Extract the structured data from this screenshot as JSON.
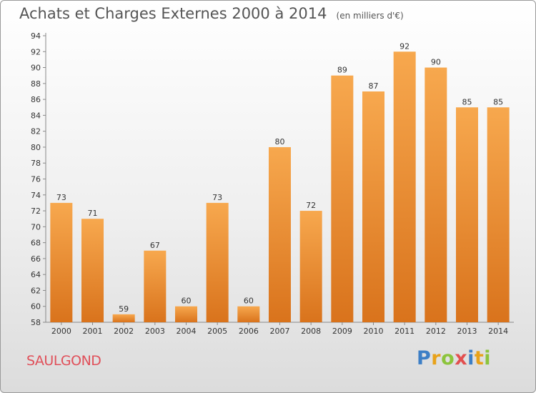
{
  "header": {
    "title": "Achats et Charges Externes 2000 à 2014",
    "unit": "(en milliers d'€)"
  },
  "footer": {
    "commune": "SAULGOND",
    "logo_letters": [
      "P",
      "r",
      "o",
      "x",
      "i",
      "t",
      "i"
    ]
  },
  "colors": {
    "bar_top": "#f7a84e",
    "bar_bottom": "#d9731c",
    "commune": "#e0505a",
    "logo": [
      "#3d7fc6",
      "#e8a21a",
      "#8cc43c",
      "#e24f4f",
      "#3d7fc6",
      "#e8a21a",
      "#8cc43c"
    ]
  },
  "chart_data": {
    "type": "bar",
    "title": "Achats et Charges Externes 2000 à 2014",
    "subtitle": "(en milliers d'€)",
    "categories": [
      "2000",
      "2001",
      "2002",
      "2003",
      "2004",
      "2005",
      "2006",
      "2007",
      "2008",
      "2009",
      "2010",
      "2011",
      "2012",
      "2013",
      "2014"
    ],
    "values": [
      73,
      71,
      59,
      67,
      60,
      73,
      60,
      80,
      72,
      89,
      87,
      92,
      90,
      85,
      85
    ],
    "ylim": [
      58,
      94
    ],
    "yticks": [
      58,
      60,
      62,
      64,
      66,
      68,
      70,
      72,
      74,
      76,
      78,
      80,
      82,
      84,
      86,
      88,
      90,
      92,
      94
    ],
    "xlabel": "",
    "ylabel": "",
    "grid": false
  }
}
